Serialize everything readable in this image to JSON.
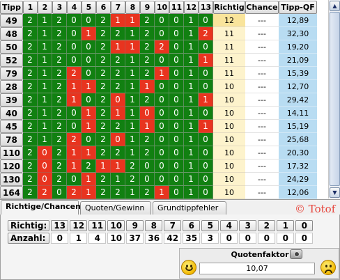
{
  "header": {
    "tipp": "Tipp",
    "columns": [
      "1",
      "2",
      "3",
      "4",
      "5",
      "6",
      "7",
      "8",
      "9",
      "10",
      "11",
      "12",
      "13"
    ],
    "richtig": "Richtig",
    "chance": "Chance",
    "tipp_qf": "Tipp-QF"
  },
  "rows": [
    {
      "id": "49",
      "cells": [
        "2",
        "1",
        "2",
        "0",
        "0",
        "2",
        "1",
        "1",
        "2",
        "0",
        "0",
        "1",
        "0"
      ],
      "reds": [
        6,
        7
      ],
      "richtig": "12",
      "chance": "---",
      "qf": "12,89",
      "top": true
    },
    {
      "id": "48",
      "cells": [
        "2",
        "1",
        "2",
        "0",
        "1",
        "2",
        "2",
        "1",
        "2",
        "0",
        "0",
        "1",
        "2"
      ],
      "reds": [
        4,
        12
      ],
      "richtig": "11",
      "chance": "---",
      "qf": "32,30",
      "top": false
    },
    {
      "id": "50",
      "cells": [
        "2",
        "1",
        "2",
        "0",
        "0",
        "2",
        "1",
        "1",
        "2",
        "2",
        "0",
        "1",
        "0"
      ],
      "reds": [
        6,
        7,
        9
      ],
      "richtig": "11",
      "chance": "---",
      "qf": "19,20",
      "top": false
    },
    {
      "id": "52",
      "cells": [
        "2",
        "1",
        "2",
        "0",
        "0",
        "2",
        "2",
        "1",
        "2",
        "0",
        "0",
        "1",
        "1"
      ],
      "reds": [
        12
      ],
      "richtig": "11",
      "chance": "---",
      "qf": "21,09",
      "top": false
    },
    {
      "id": "79",
      "cells": [
        "2",
        "1",
        "2",
        "2",
        "0",
        "2",
        "2",
        "1",
        "2",
        "1",
        "0",
        "1",
        "0"
      ],
      "reds": [
        3,
        9
      ],
      "richtig": "11",
      "chance": "---",
      "qf": "15,39",
      "top": false
    },
    {
      "id": "28",
      "cells": [
        "2",
        "1",
        "2",
        "1",
        "1",
        "2",
        "2",
        "1",
        "1",
        "0",
        "0",
        "1",
        "0"
      ],
      "reds": [
        3,
        4,
        8
      ],
      "richtig": "10",
      "chance": "---",
      "qf": "12,70",
      "top": false
    },
    {
      "id": "39",
      "cells": [
        "2",
        "1",
        "2",
        "1",
        "0",
        "2",
        "0",
        "1",
        "2",
        "0",
        "0",
        "1",
        "1"
      ],
      "reds": [
        3,
        6,
        12
      ],
      "richtig": "10",
      "chance": "---",
      "qf": "29,42",
      "top": false
    },
    {
      "id": "40",
      "cells": [
        "2",
        "1",
        "2",
        "0",
        "1",
        "2",
        "1",
        "1",
        "0",
        "0",
        "0",
        "1",
        "0"
      ],
      "reds": [
        4,
        6,
        8
      ],
      "richtig": "10",
      "chance": "---",
      "qf": "14,11",
      "top": false
    },
    {
      "id": "45",
      "cells": [
        "2",
        "1",
        "2",
        "0",
        "1",
        "2",
        "2",
        "1",
        "1",
        "0",
        "0",
        "1",
        "1"
      ],
      "reds": [
        4,
        8,
        12
      ],
      "richtig": "10",
      "chance": "---",
      "qf": "15,19",
      "top": false
    },
    {
      "id": "78",
      "cells": [
        "2",
        "1",
        "2",
        "2",
        "0",
        "2",
        "0",
        "1",
        "2",
        "0",
        "0",
        "1",
        "0"
      ],
      "reds": [
        3,
        6
      ],
      "richtig": "10",
      "chance": "---",
      "qf": "25,68",
      "top": false
    },
    {
      "id": "110",
      "cells": [
        "2",
        "0",
        "2",
        "1",
        "1",
        "2",
        "2",
        "1",
        "2",
        "0",
        "0",
        "1",
        "0"
      ],
      "reds": [
        1,
        3,
        4
      ],
      "richtig": "10",
      "chance": "---",
      "qf": "20,30",
      "top": false
    },
    {
      "id": "120",
      "cells": [
        "2",
        "0",
        "2",
        "1",
        "2",
        "1",
        "1",
        "2",
        "0",
        "0",
        "0",
        "1",
        "0"
      ],
      "reds": [
        1,
        3,
        5,
        6
      ],
      "richtig": "10",
      "chance": "---",
      "qf": "17,32",
      "top": false
    },
    {
      "id": "130",
      "cells": [
        "2",
        "0",
        "2",
        "0",
        "1",
        "2",
        "1",
        "2",
        "0",
        "0",
        "0",
        "1",
        "0"
      ],
      "reds": [
        1,
        4
      ],
      "richtig": "10",
      "chance": "---",
      "qf": "24,29",
      "top": false
    },
    {
      "id": "164",
      "cells": [
        "2",
        "2",
        "0",
        "2",
        "1",
        "2",
        "2",
        "1",
        "2",
        "1",
        "0",
        "1",
        "0"
      ],
      "reds": [
        1,
        3,
        4,
        9
      ],
      "richtig": "10",
      "chance": "---",
      "qf": "12,06",
      "top": false
    }
  ],
  "tabs": [
    {
      "label": "Richtige/Chancen",
      "active": true
    },
    {
      "label": "Quoten/Gewinn",
      "active": false
    },
    {
      "label": "Grundtippfehler",
      "active": false
    }
  ],
  "watermark": "© Totof",
  "stats": {
    "richtig_label": "Richtig:",
    "anzahl_label": "Anzahl:",
    "richtige": [
      "13",
      "12",
      "11",
      "10",
      "9",
      "8",
      "7",
      "6",
      "5",
      "4",
      "3",
      "2",
      "1",
      "0"
    ],
    "anzahl": [
      "0",
      "1",
      "4",
      "10",
      "37",
      "36",
      "42",
      "35",
      "3",
      "0",
      "0",
      "0",
      "0",
      "0"
    ]
  },
  "quotenfaktor": {
    "label": "Quotenfaktor",
    "value": "10,07"
  },
  "colors": {
    "green": "#118011",
    "red": "#e8341f",
    "richtig_bg": "#fdf3cc",
    "qf_bg": "#b8dcf2"
  },
  "icons": [
    "scroll-up-icon",
    "scroll-down-icon",
    "camera-icon",
    "happy-smiley-icon",
    "sad-smiley-icon"
  ]
}
